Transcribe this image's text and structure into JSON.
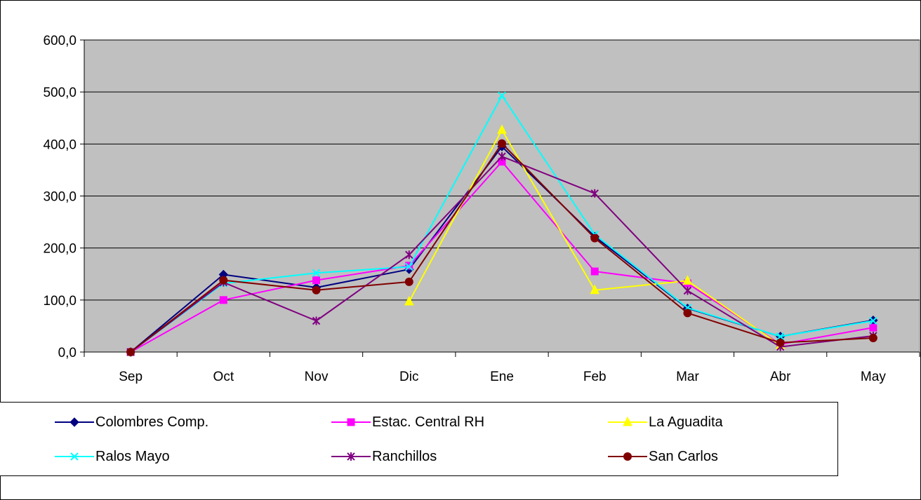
{
  "chart_data": {
    "type": "line",
    "categories": [
      "Sep",
      "Oct",
      "Nov",
      "Dic",
      "Ene",
      "Feb",
      "Mar",
      "Abr",
      "May"
    ],
    "ylim": [
      0,
      600
    ],
    "yticks": [
      "0,0",
      "100,0",
      "200,0",
      "300,0",
      "400,0",
      "500,0",
      "600,0"
    ],
    "ytick_values": [
      0,
      100,
      200,
      300,
      400,
      500,
      600
    ],
    "grid": true,
    "legend_position": "bottom",
    "plot_background": "#C0C0C0",
    "series": [
      {
        "name": "Colombres Comp.",
        "color": "#000080",
        "marker": "diamond",
        "values": [
          0,
          149,
          124,
          159,
          395,
          222,
          84,
          30,
          61
        ]
      },
      {
        "name": "Estac. Central RH",
        "color": "#FF00FF",
        "marker": "square",
        "values": [
          0,
          100,
          138,
          166,
          366,
          155,
          132,
          15,
          47
        ]
      },
      {
        "name": "La Aguadita",
        "color": "#FFFF00",
        "marker": "triangle",
        "values": [
          null,
          null,
          null,
          97,
          427,
          119,
          137,
          13,
          null
        ]
      },
      {
        "name": "Ralos Mayo",
        "color": "#00FFFF",
        "marker": "x",
        "values": [
          0,
          132,
          152,
          164,
          493,
          226,
          85,
          30,
          60
        ]
      },
      {
        "name": "Ranchillos",
        "color": "#800080",
        "marker": "star",
        "values": [
          0,
          134,
          60,
          187,
          376,
          305,
          118,
          10,
          31
        ]
      },
      {
        "name": "San Carlos",
        "color": "#800000",
        "marker": "circle",
        "values": [
          0,
          138,
          119,
          135,
          401,
          219,
          75,
          18,
          27
        ]
      }
    ]
  }
}
